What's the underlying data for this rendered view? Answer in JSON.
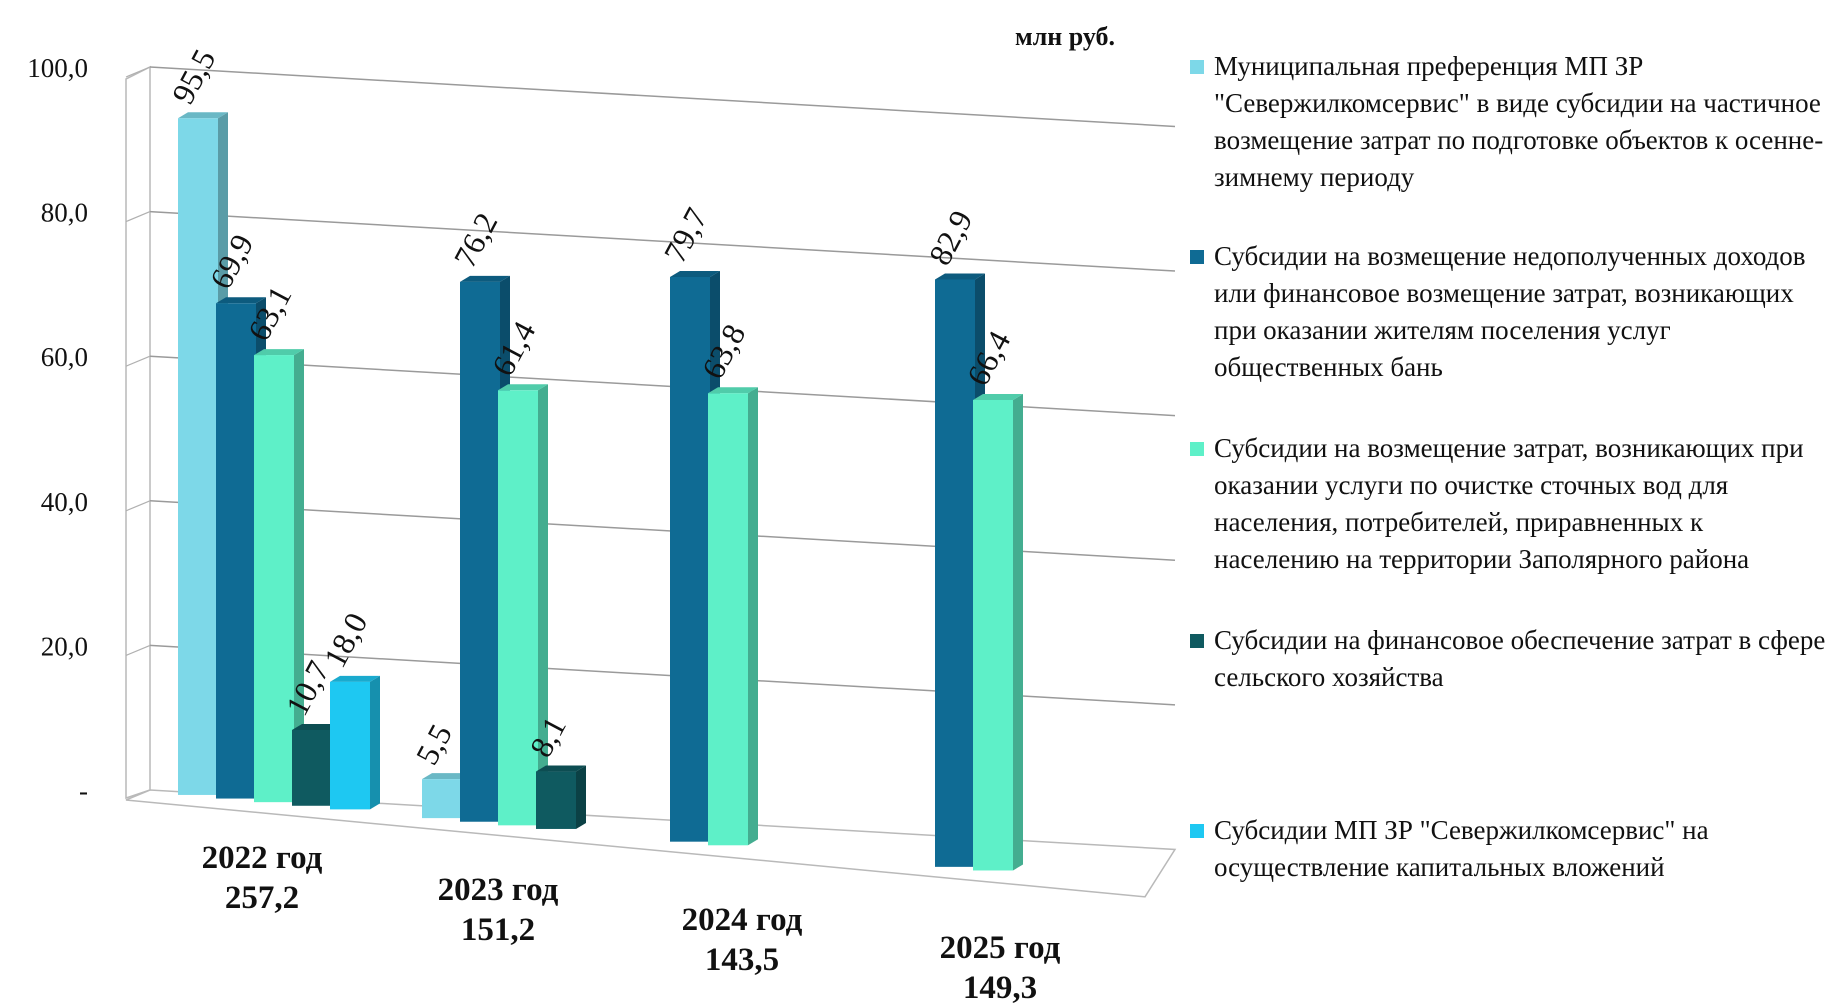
{
  "chart_data": {
    "type": "bar",
    "unit_label": "млн руб.",
    "ylim": [
      0,
      100
    ],
    "yticks": [
      {
        "value": 0,
        "label": "-"
      },
      {
        "value": 20,
        "label": "20,0"
      },
      {
        "value": 40,
        "label": "40,0"
      },
      {
        "value": 60,
        "label": "60,0"
      },
      {
        "value": 80,
        "label": "80,0"
      },
      {
        "value": 100,
        "label": "100,0"
      }
    ],
    "grid": true,
    "legend_position": "right",
    "categories": [
      {
        "label": "2022 год",
        "total": "257,2"
      },
      {
        "label": "2023 год",
        "total": "151,2"
      },
      {
        "label": "2024 год",
        "total": "143,5"
      },
      {
        "label": "2025 год",
        "total": "149,3"
      }
    ],
    "series": [
      {
        "name": "Муниципальная преференция МП ЗР \"Севержилкомсервис\" в виде субсидии на частичное возмещение затрат по подготовке объектов к осенне-зимнему периоду",
        "color": "#7dd8e8",
        "values": [
          95.5,
          5.5,
          null,
          null
        ],
        "labels": [
          "95,5",
          "5,5",
          "",
          ""
        ]
      },
      {
        "name": "Субсидии на возмещение недополученных доходов или финансовое возмещение затрат, возникающих при оказании жителям поселения услуг общественных бань",
        "color": "#0f6b94",
        "values": [
          69.9,
          76.2,
          79.7,
          82.9
        ],
        "labels": [
          "69,9",
          "76,2",
          "79,7",
          "82,9"
        ]
      },
      {
        "name": "Субсидии на возмещение затрат, возникающих  при оказании услуги по очистке сточных вод для населения, потребителей, приравненных к населению на территории Заполярного района",
        "color": "#5ef0c8",
        "values": [
          63.1,
          61.4,
          63.8,
          66.4
        ],
        "labels": [
          "63,1",
          "61,4",
          "63,8",
          "66,4"
        ]
      },
      {
        "name": "Субсидии на финансовое обеспечение затрат в сфере сельского хозяйства",
        "color": "#0f5a60",
        "values": [
          10.7,
          8.1,
          null,
          null
        ],
        "labels": [
          "10,7",
          "8,1",
          "",
          ""
        ]
      },
      {
        "name": "Субсидии МП ЗР \"Севержилкомсервис\" на осуществление капитальных вложений",
        "color": "#1ec8f2",
        "values": [
          18.0,
          null,
          null,
          null
        ],
        "labels": [
          "18,0",
          "",
          "",
          ""
        ]
      }
    ]
  }
}
